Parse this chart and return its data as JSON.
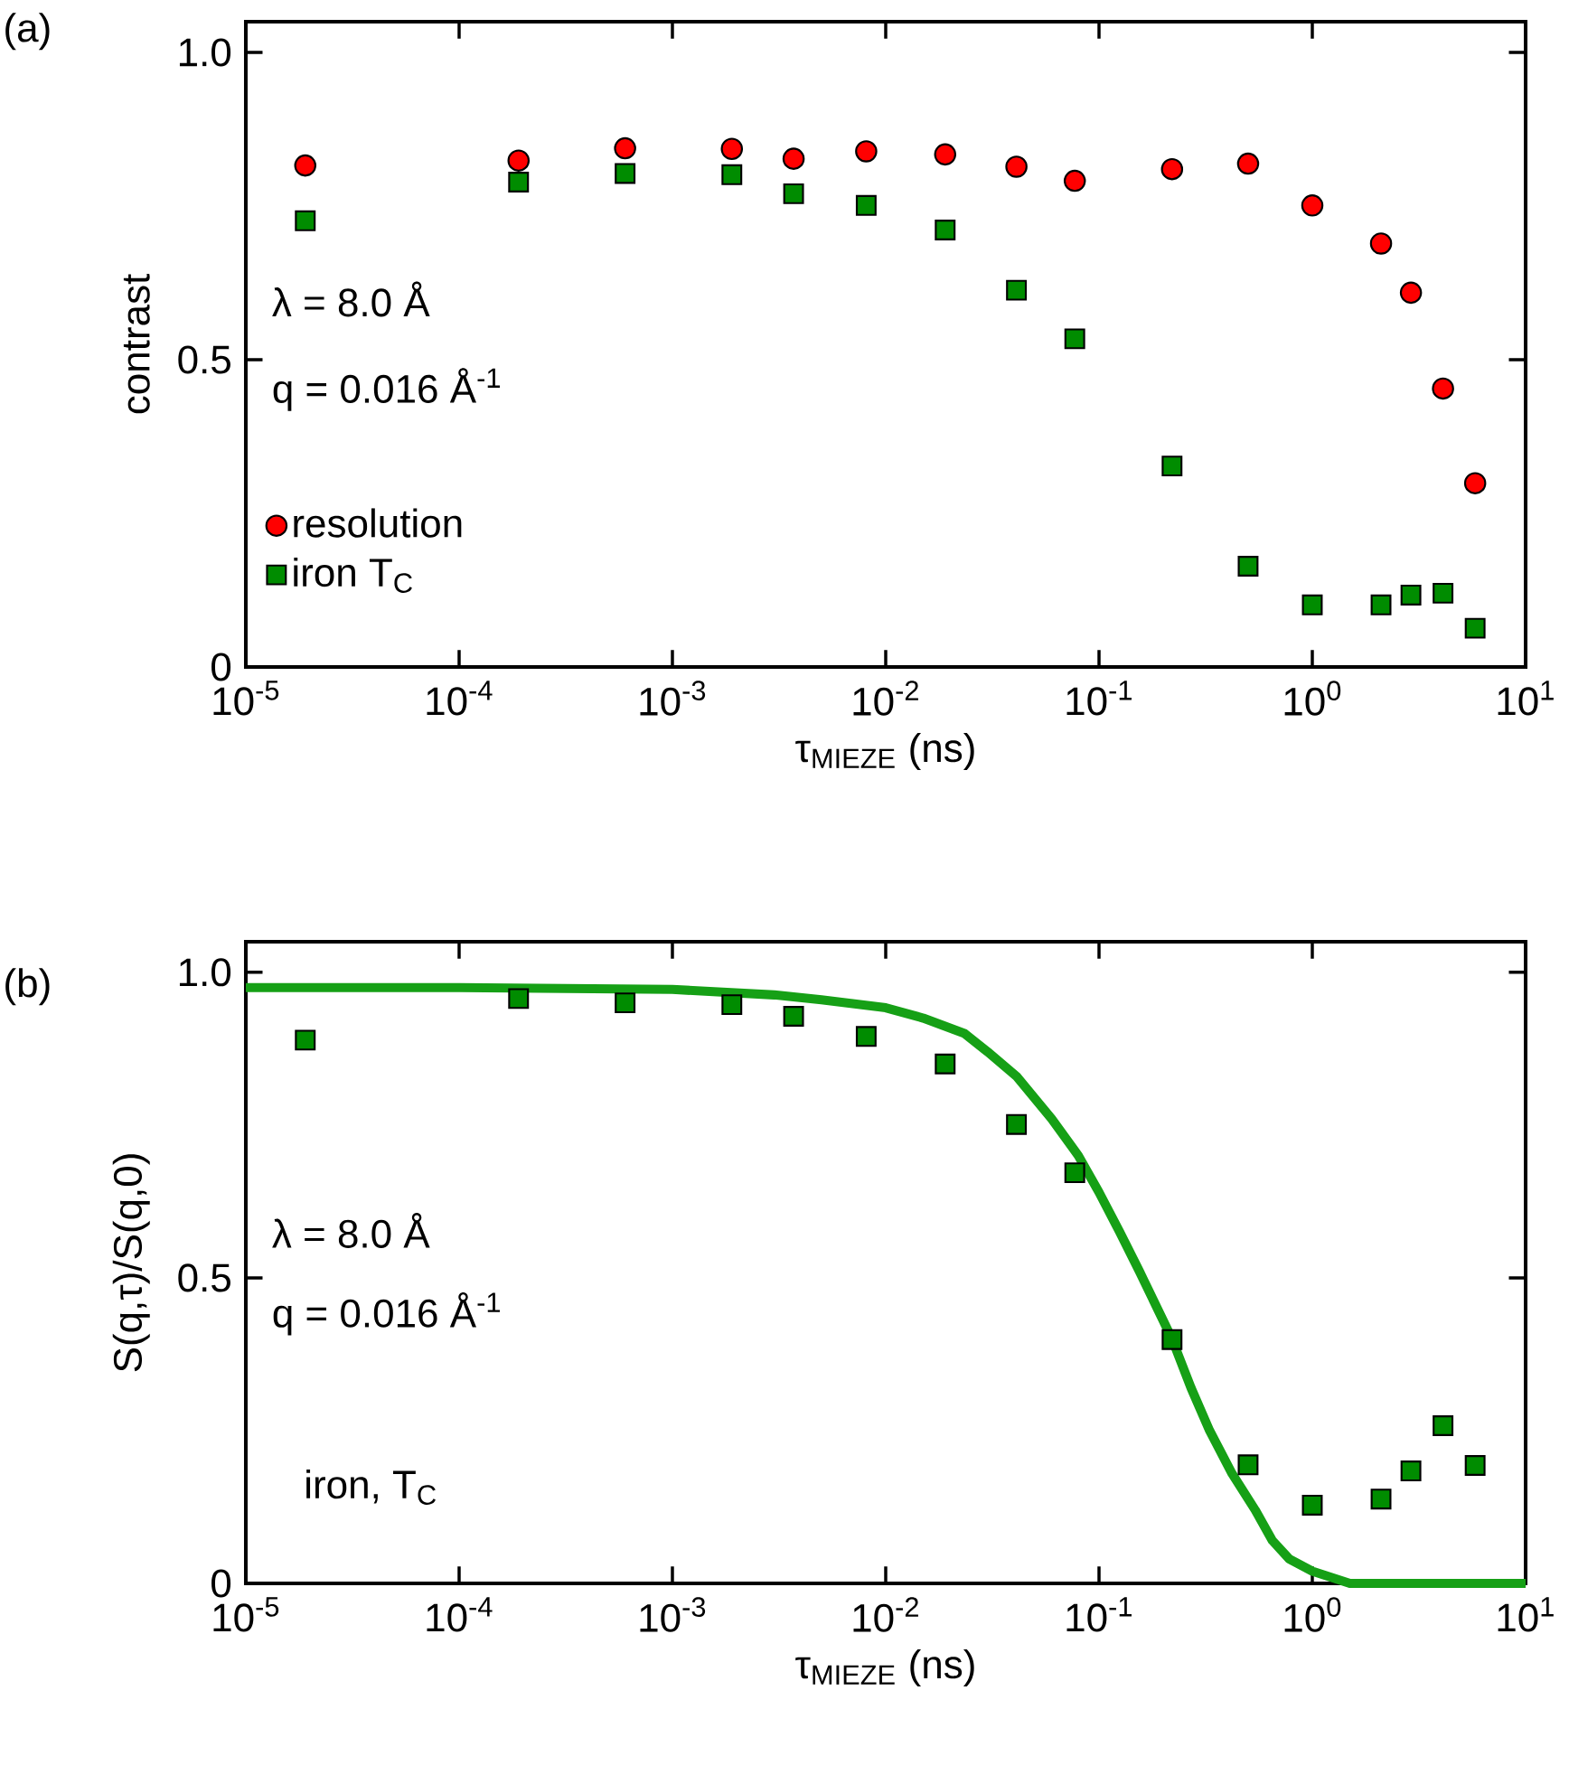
{
  "chart_data": [
    {
      "type": "scatter",
      "xlabel": "τ$_{MIEZE}$ (ns)",
      "ylabel": "contrast",
      "log": "x",
      "legend": "bottom left",
      "annotations": [
        "(a)",
        "λ = 8.0 Å",
        "q = 0.016 Å$^{-1}$"
      ],
      "xlim": [
        1e-05,
        10
      ],
      "ylim": [
        0,
        1.05
      ],
      "xticks": [
        {
          "value": 1e-05,
          "label": "10$^{-5}$"
        },
        {
          "value": 0.0001,
          "label": "10$^{-4}$"
        },
        {
          "value": 0.001,
          "label": "10$^{-3}$"
        },
        {
          "value": 0.01,
          "label": "10$^{-2}$"
        },
        {
          "value": 0.1,
          "label": "10$^{-1}$"
        },
        {
          "value": 1,
          "label": "10$^{0}$"
        },
        {
          "value": 10,
          "label": "10$^{1}$"
        }
      ],
      "yticks": [
        0,
        0.5,
        {
          "value": 1,
          "label": "1.0"
        }
      ],
      "x": [
        1.9e-05,
        0.00019,
        0.0006,
        0.0019,
        0.0037,
        0.0081,
        0.019,
        0.041,
        0.077,
        0.22,
        0.5,
        1.0,
        2.1,
        2.9,
        4.1,
        5.8
      ],
      "series": [
        {
          "name": "resolution",
          "color": "#ff0000",
          "marker": "circle",
          "values": [
            0.816,
            0.824,
            0.844,
            0.843,
            0.827,
            0.839,
            0.834,
            0.814,
            0.791,
            0.81,
            0.819,
            0.751,
            0.689,
            0.609,
            0.453,
            0.299
          ]
        },
        {
          "name": "iron T$_{C}$",
          "color": "#008c00",
          "marker": "square",
          "values": [
            0.726,
            0.789,
            0.803,
            0.801,
            0.77,
            0.751,
            0.711,
            0.613,
            0.534,
            0.327,
            0.164,
            0.101,
            0.101,
            0.117,
            0.12,
            0.063
          ]
        }
      ]
    },
    {
      "type": "scatter",
      "xlabel": "τ$_{MIEZE}$ (ns)",
      "ylabel": "S(q,τ)/S(q,0)",
      "log": "x",
      "annotations": [
        "(b)",
        "λ = 8.0 Å",
        "q = 0.016 Å$^{-1}$",
        "iron, T$_{C}$"
      ],
      "xlim": [
        1e-05,
        10
      ],
      "ylim": [
        0,
        1.05
      ],
      "xticks": [
        {
          "value": 1e-05,
          "label": "10$^{-5}$"
        },
        {
          "value": 0.0001,
          "label": "10$^{-4}$"
        },
        {
          "value": 0.001,
          "label": "10$^{-3}$"
        },
        {
          "value": 0.01,
          "label": "10$^{-2}$"
        },
        {
          "value": 0.1,
          "label": "10$^{-1}$"
        },
        {
          "value": 1,
          "label": "10$^{0}$"
        },
        {
          "value": 10,
          "label": "10$^{1}$"
        }
      ],
      "yticks": [
        0,
        0.5,
        {
          "value": 1,
          "label": "1.0"
        }
      ],
      "series": [
        {
          "type": "line",
          "color": "#16a016",
          "marker": "none",
          "x": [
            1e-05,
            0.0001,
            0.001,
            0.003,
            0.005,
            0.01,
            0.015,
            0.0234,
            0.03,
            0.041,
            0.06,
            0.08,
            0.1,
            0.125,
            0.155,
            0.22,
            0.27,
            0.33,
            0.42,
            0.54,
            0.65,
            0.78,
            1.0,
            1.5,
            10
          ],
          "values": [
            0.975,
            0.975,
            0.972,
            0.963,
            0.955,
            0.942,
            0.925,
            0.9,
            0.87,
            0.83,
            0.76,
            0.7,
            0.64,
            0.575,
            0.51,
            0.4,
            0.32,
            0.25,
            0.18,
            0.12,
            0.07,
            0.04,
            0.02,
            0.0,
            0.0
          ]
        },
        {
          "type": "scatter",
          "color": "#008c00",
          "marker": "square",
          "x": [
            1.9e-05,
            0.00019,
            0.0006,
            0.0019,
            0.0037,
            0.0081,
            0.019,
            0.041,
            0.077,
            0.22,
            0.5,
            1.0,
            2.1,
            2.9,
            4.1,
            5.8
          ],
          "values": [
            0.889,
            0.957,
            0.95,
            0.947,
            0.928,
            0.895,
            0.85,
            0.751,
            0.672,
            0.399,
            0.194,
            0.128,
            0.138,
            0.184,
            0.258,
            0.193
          ]
        }
      ]
    }
  ]
}
